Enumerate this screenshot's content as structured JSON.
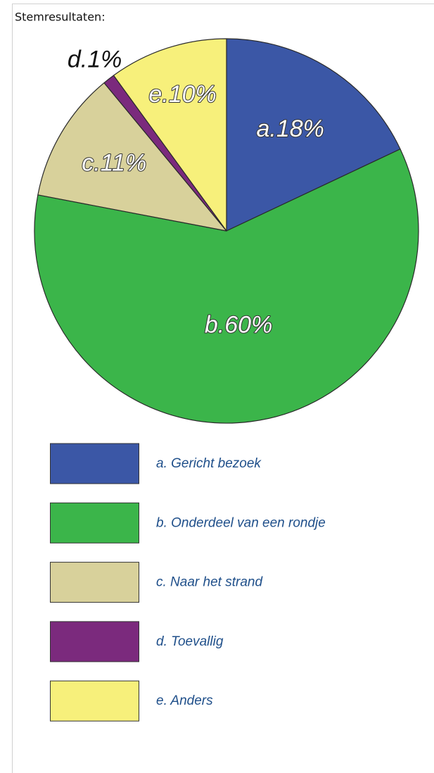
{
  "chart_data": {
    "type": "pie",
    "title": "Stemresultaten:",
    "categories": [
      "a. Gericht bezoek",
      "b. Onderdeel van een rondje",
      "c. Naar het strand",
      "d. Toevallig",
      "e. Anders"
    ],
    "values": [
      18,
      60,
      11,
      1,
      10
    ],
    "value_labels": [
      "a.18%",
      "b.60%",
      "c.11%",
      "d.1%",
      "e.10%"
    ],
    "colors": [
      "#3b57a6",
      "#3bb54a",
      "#d8d19b",
      "#7b2a7d",
      "#f7f07b"
    ]
  }
}
